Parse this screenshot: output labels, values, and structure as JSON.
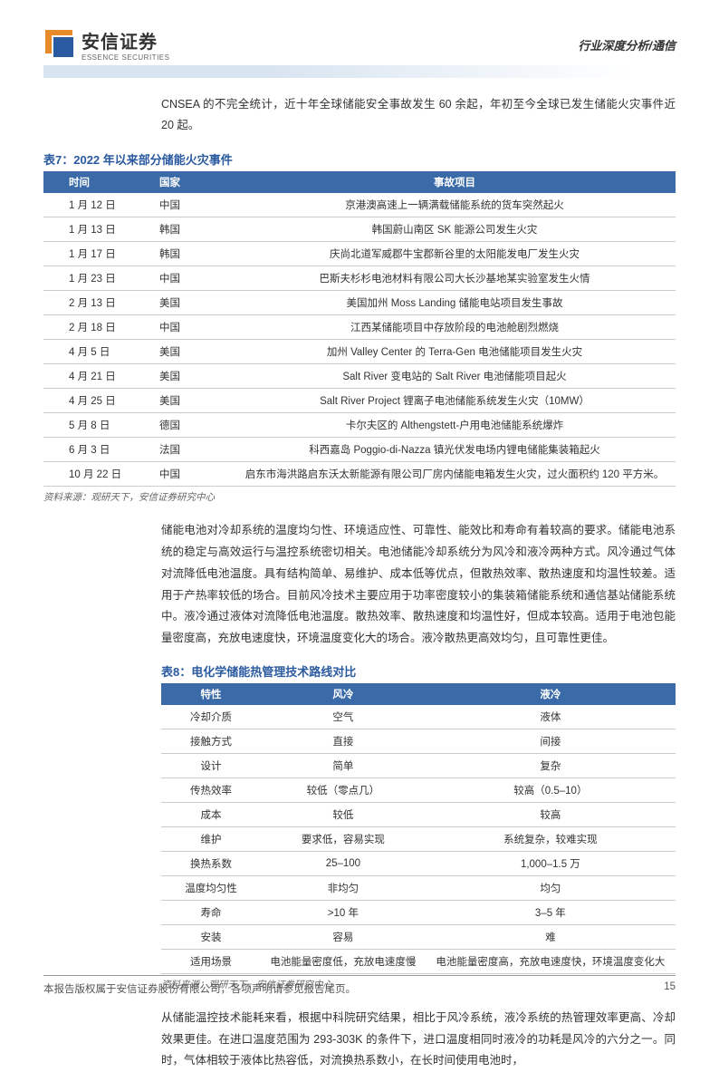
{
  "header": {
    "logo_cn": "安信证券",
    "logo_en": "ESSENCE SECURITIES",
    "right_label": "行业深度分析/通信"
  },
  "intro_text": "CNSEA 的不完全统计，近十年全球储能安全事故发生 60 余起，年初至今全球已发生储能火灾事件近 20 起。",
  "table7": {
    "title": "表7：2022 年以来部分储能火灾事件",
    "headers": [
      "时间",
      "国家",
      "事故项目"
    ],
    "rows": [
      [
        "1 月 12 日",
        "中国",
        "京港澳高速上一辆满载储能系统的货车突然起火"
      ],
      [
        "1 月 13 日",
        "韩国",
        "韩国蔚山南区 SK 能源公司发生火灾"
      ],
      [
        "1 月 17 日",
        "韩国",
        "庆尚北道军威郡牛宝郡新谷里的太阳能发电厂发生火灾"
      ],
      [
        "1 月 23 日",
        "中国",
        "巴斯夫杉杉电池材料有限公司大长沙基地某实验室发生火情"
      ],
      [
        "2 月 13 日",
        "美国",
        "美国加州 Moss Landing 储能电站项目发生事故"
      ],
      [
        "2 月 18 日",
        "中国",
        "江西某储能项目中存放阶段的电池舱剧烈燃烧"
      ],
      [
        "4 月 5 日",
        "美国",
        "加州 Valley Center 的 Terra-Gen 电池储能项目发生火灾"
      ],
      [
        "4 月 21 日",
        "美国",
        "Salt River 变电站的 Salt River 电池储能项目起火"
      ],
      [
        "4 月 25 日",
        "美国",
        "Salt River Project 锂离子电池储能系统发生火灾（10MW）"
      ],
      [
        "5 月 8 日",
        "德国",
        "卡尔夫区的 Althengstett-户用电池储能系统爆炸"
      ],
      [
        "6 月 3 日",
        "法国",
        "科西嘉岛 Poggio-di-Nazza 镇光伏发电场内锂电储能集装箱起火"
      ],
      [
        "10 月 22 日",
        "中国",
        "启东市海洪路启东沃太新能源有限公司厂房内储能电箱发生火灾，过火面积约 120 平方米。"
      ]
    ],
    "source": "资料来源：观研天下，安信证券研究中心"
  },
  "para1": "储能电池对冷却系统的温度均匀性、环境适应性、可靠性、能效比和寿命有着较高的要求。储能电池系统的稳定与高效运行与温控系统密切相关。电池储能冷却系统分为风冷和液冷两种方式。风冷通过气体对流降低电池温度。具有结构简单、易维护、成本低等优点，但散热效率、散热速度和均温性较差。适用于产热率较低的场合。目前风冷技术主要应用于功率密度较小的集装箱储能系统和通信基站储能系统中。液冷通过液体对流降低电池温度。散热效率、散热速度和均温性好，但成本较高。适用于电池包能量密度高，充放电速度快，环境温度变化大的场合。液冷散热更高效均匀，且可靠性更佳。",
  "table8": {
    "title": "表8：电化学储能热管理技术路线对比",
    "headers": [
      "特性",
      "风冷",
      "液冷"
    ],
    "rows": [
      [
        "冷却介质",
        "空气",
        "液体"
      ],
      [
        "接触方式",
        "直接",
        "间接"
      ],
      [
        "设计",
        "简单",
        "复杂"
      ],
      [
        "传热效率",
        "较低（零点几）",
        "较高（0.5–10）"
      ],
      [
        "成本",
        "较低",
        "较高"
      ],
      [
        "维护",
        "要求低，容易实现",
        "系统复杂，较难实现"
      ],
      [
        "换热系数",
        "25–100",
        "1,000–1.5 万"
      ],
      [
        "温度均匀性",
        "非均匀",
        "均匀"
      ],
      [
        "寿命",
        ">10 年",
        "3–5 年"
      ],
      [
        "安装",
        "容易",
        "难"
      ],
      [
        "适用场景",
        "电池能量密度低，充放电速度慢",
        "电池能量密度高，充放电速度快，环境温度变化大"
      ]
    ],
    "source": "资料来源：观研天下，安信证券研究中心"
  },
  "para2": "从储能温控技术能耗来看，根据中科院研究结果，相比于风冷系统，液冷系统的热管理效率更高、冷却效果更佳。在进口温度范围为 293-303K 的条件下，进口温度相同时液冷的功耗是风冷的六分之一。同时，气体相较于液体比热容低，对流换热系数小，在长时间使用电池时，",
  "footer": {
    "left": "本报告版权属于安信证券股份有限公司，各项声明请参见报告尾页。",
    "page": "15"
  },
  "colors": {
    "header_blue": "#2a5a9f",
    "table_header_bg": "#3a6aa8",
    "logo_orange": "#e88a2a",
    "logo_blue": "#2a5a9f"
  }
}
